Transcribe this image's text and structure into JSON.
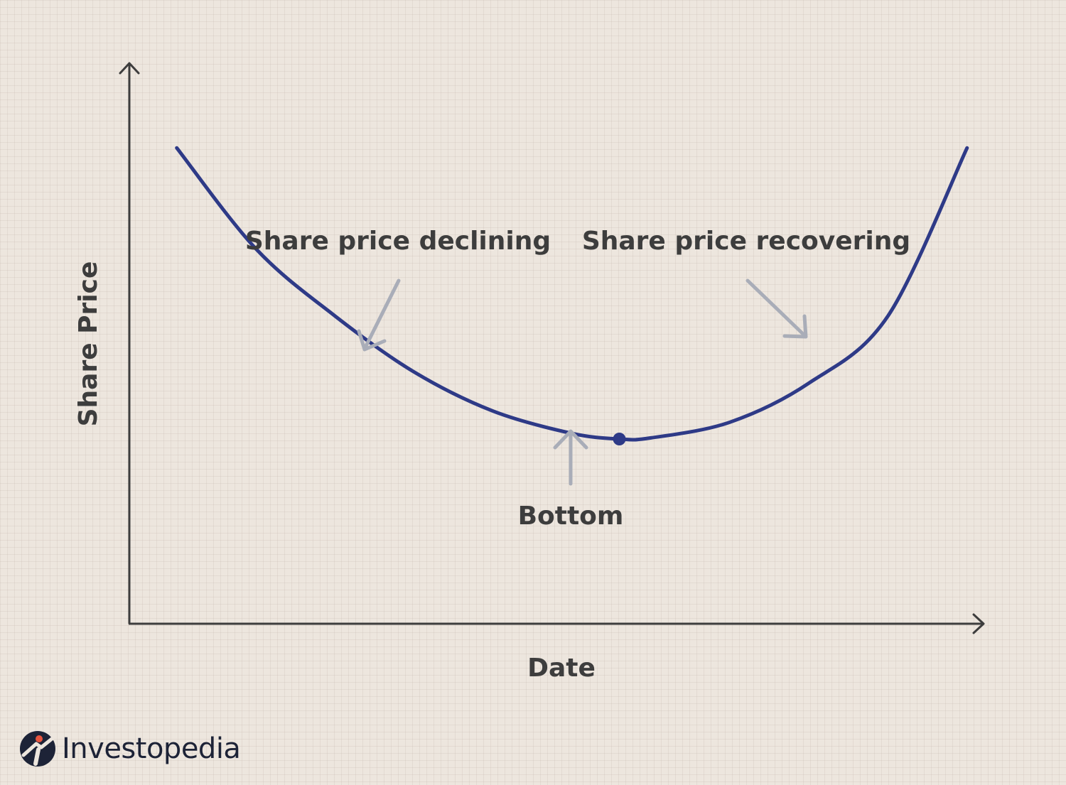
{
  "chart_data": {
    "type": "line",
    "title": "",
    "xlabel": "Date",
    "ylabel": "Share Price",
    "grid": false,
    "legend": "none",
    "ticks": "none",
    "x": [
      0,
      10,
      20,
      30,
      40,
      50,
      56,
      60,
      70,
      80,
      90,
      100
    ],
    "series": [
      {
        "values": [
          65,
          47,
          35,
          25,
          18,
          14,
          13,
          13.2,
          16,
          23,
          35,
          65
        ],
        "color": "#2e3a87"
      }
    ],
    "xlim": [
      -6,
      102
    ],
    "ylim": [
      -20,
      80
    ],
    "highlight_point": {
      "x": 56,
      "y": 13,
      "color": "#2e3a87"
    },
    "annotations": [
      {
        "text": "Share price declining",
        "arrow_color": "#a9adb8"
      },
      {
        "text": "Share price recovering",
        "arrow_color": "#a9adb8"
      },
      {
        "text": "Bottom",
        "arrow_color": "#a9adb8"
      }
    ]
  },
  "brand": {
    "name": "Investopedia",
    "logo_icon": "investopedia-logo-icon",
    "dot_color": "#e8553f",
    "mark_color": "#1d2337"
  }
}
